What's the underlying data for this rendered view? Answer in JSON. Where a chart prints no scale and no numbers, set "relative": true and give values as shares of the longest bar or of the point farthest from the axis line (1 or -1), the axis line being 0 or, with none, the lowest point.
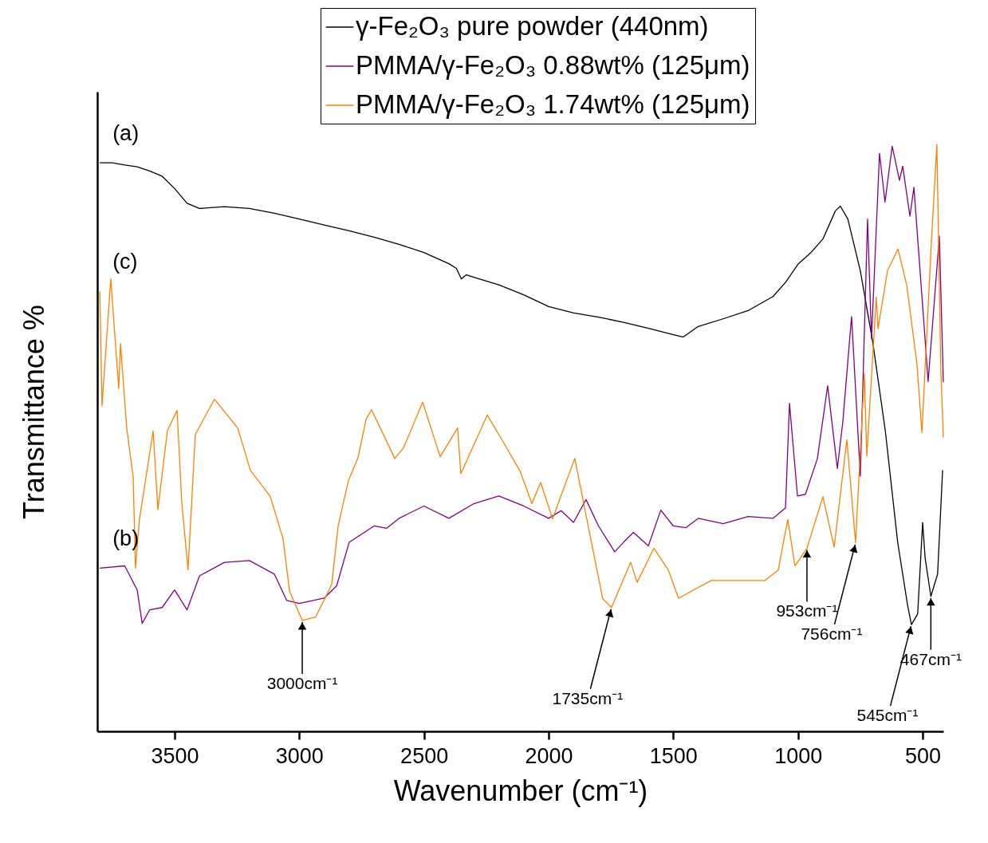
{
  "chart_data": {
    "type": "line",
    "xlabel": "Wavenumber (cm⁻¹)",
    "ylabel": "Transmittance %",
    "relative": true,
    "tick_labels": "x",
    "xlim": [
      3810,
      417
    ],
    "xticks": [
      3500,
      3000,
      2500,
      2000,
      1500,
      1000,
      500
    ],
    "legend": "top right",
    "grid": false,
    "marker": "none",
    "line_style": "solid",
    "series": [
      {
        "name": "γ-Fe₂O₃ pure powder (440nm)",
        "color": "#000000",
        "x": [
          3800,
          3750,
          3700,
          3650,
          3600,
          3550,
          3500,
          3450,
          3400,
          3300,
          3200,
          3100,
          3000,
          2900,
          2800,
          2700,
          2600,
          2500,
          2400,
          2370,
          2350,
          2330,
          2300,
          2200,
          2100,
          2000,
          1900,
          1800,
          1700,
          1600,
          1500,
          1460,
          1400,
          1300,
          1200,
          1100,
          1050,
          1000,
          950,
          900,
          850,
          830,
          800,
          750,
          700,
          650,
          600,
          560,
          545,
          520,
          500,
          490,
          467,
          440,
          420
        ],
        "values": [
          0.969,
          0.969,
          0.965,
          0.962,
          0.955,
          0.946,
          0.925,
          0.9,
          0.891,
          0.894,
          0.891,
          0.883,
          0.873,
          0.863,
          0.853,
          0.842,
          0.83,
          0.816,
          0.797,
          0.789,
          0.771,
          0.778,
          0.774,
          0.761,
          0.744,
          0.724,
          0.713,
          0.706,
          0.697,
          0.687,
          0.676,
          0.672,
          0.69,
          0.703,
          0.717,
          0.741,
          0.765,
          0.796,
          0.815,
          0.839,
          0.887,
          0.895,
          0.873,
          0.785,
          0.663,
          0.513,
          0.322,
          0.214,
          0.182,
          0.2,
          0.356,
          0.295,
          0.23,
          0.268,
          0.445
        ]
      },
      {
        "name": "PMMA/γ-Fe₂O₃ 0.88wt% (125μm)",
        "color": "#800080",
        "x": [
          3800,
          3700,
          3650,
          3630,
          3600,
          3550,
          3500,
          3450,
          3400,
          3300,
          3200,
          3100,
          3050,
          3000,
          2900,
          2850,
          2800,
          2700,
          2650,
          2600,
          2500,
          2400,
          2300,
          2200,
          2100,
          2000,
          1950,
          1900,
          1850,
          1800,
          1735,
          1700,
          1660,
          1600,
          1550,
          1500,
          1450,
          1400,
          1300,
          1200,
          1100,
          1050,
          1034,
          1002,
          970,
          922,
          881,
          842,
          820,
          785,
          750,
          721,
          705,
          673,
          651,
          622,
          593,
          580,
          551,
          535,
          500,
          478,
          433,
          417
        ],
        "values": [
          0.278,
          0.282,
          0.241,
          0.184,
          0.207,
          0.211,
          0.241,
          0.207,
          0.265,
          0.288,
          0.291,
          0.268,
          0.223,
          0.218,
          0.227,
          0.248,
          0.322,
          0.35,
          0.346,
          0.363,
          0.384,
          0.363,
          0.388,
          0.401,
          0.384,
          0.363,
          0.376,
          0.356,
          0.395,
          0.35,
          0.306,
          0.322,
          0.339,
          0.316,
          0.377,
          0.35,
          0.347,
          0.363,
          0.354,
          0.366,
          0.363,
          0.381,
          0.559,
          0.401,
          0.404,
          0.465,
          0.589,
          0.448,
          0.528,
          0.707,
          0.435,
          0.873,
          0.669,
          0.985,
          0.902,
          0.997,
          0.939,
          0.963,
          0.878,
          0.927,
          0.725,
          0.596,
          0.844,
          0.595
        ]
      },
      {
        "name": "PMMA/γ-Fe₂O₃ 1.74wt% (125μm)",
        "color": "#ff8000",
        "x": [
          3800,
          3791,
          3756,
          3724,
          3717,
          3692,
          3666,
          3657,
          3641,
          3586,
          3567,
          3529,
          3490,
          3471,
          3446,
          3417,
          3340,
          3247,
          3196,
          3116,
          3065,
          3039,
          2988,
          2934,
          2870,
          2844,
          2803,
          2764,
          2732,
          2710,
          2617,
          2582,
          2505,
          2435,
          2365,
          2352,
          2246,
          2182,
          2115,
          2067,
          2032,
          1984,
          1943,
          1895,
          1840,
          1783,
          1748,
          1671,
          1645,
          1578,
          1520,
          1479,
          1348,
          1133,
          1079,
          1041,
          1012,
          964,
          900,
          855,
          804,
          769,
          734,
          724,
          686,
          679,
          641,
          599,
          564,
          523,
          503,
          465,
          443,
          427,
          417
        ],
        "values": [
          0.75,
          0.555,
          0.771,
          0.584,
          0.661,
          0.517,
          0.433,
          0.278,
          0.361,
          0.512,
          0.378,
          0.512,
          0.547,
          0.389,
          0.275,
          0.506,
          0.566,
          0.517,
          0.445,
          0.4,
          0.328,
          0.239,
          0.189,
          0.195,
          0.25,
          0.35,
          0.427,
          0.467,
          0.532,
          0.548,
          0.465,
          0.483,
          0.561,
          0.468,
          0.517,
          0.439,
          0.539,
          0.493,
          0.444,
          0.388,
          0.424,
          0.362,
          0.41,
          0.465,
          0.347,
          0.226,
          0.211,
          0.288,
          0.254,
          0.312,
          0.275,
          0.227,
          0.257,
          0.257,
          0.275,
          0.361,
          0.282,
          0.312,
          0.4,
          0.314,
          0.497,
          0.321,
          0.61,
          0.469,
          0.74,
          0.686,
          0.785,
          0.822,
          0.761,
          0.627,
          0.509,
          0.834,
          1.0,
          0.615,
          0.501
        ]
      }
    ],
    "annotations": [
      "(a)",
      "(b)",
      "(c)",
      {
        "text": "3000cm⁻¹",
        "x": 2988,
        "y": 0.189
      },
      {
        "text": "1735cm⁻¹",
        "x": 1748,
        "y": 0.211
      },
      {
        "text": "953cm⁻¹",
        "x": 964,
        "y": 0.312
      },
      {
        "text": "756cm⁻¹",
        "x": 769,
        "y": 0.321
      },
      {
        "text": "467cm⁻¹",
        "x": 467,
        "y": 0.23
      },
      {
        "text": "545cm⁻¹",
        "x": 545,
        "y": 0.182
      }
    ]
  }
}
